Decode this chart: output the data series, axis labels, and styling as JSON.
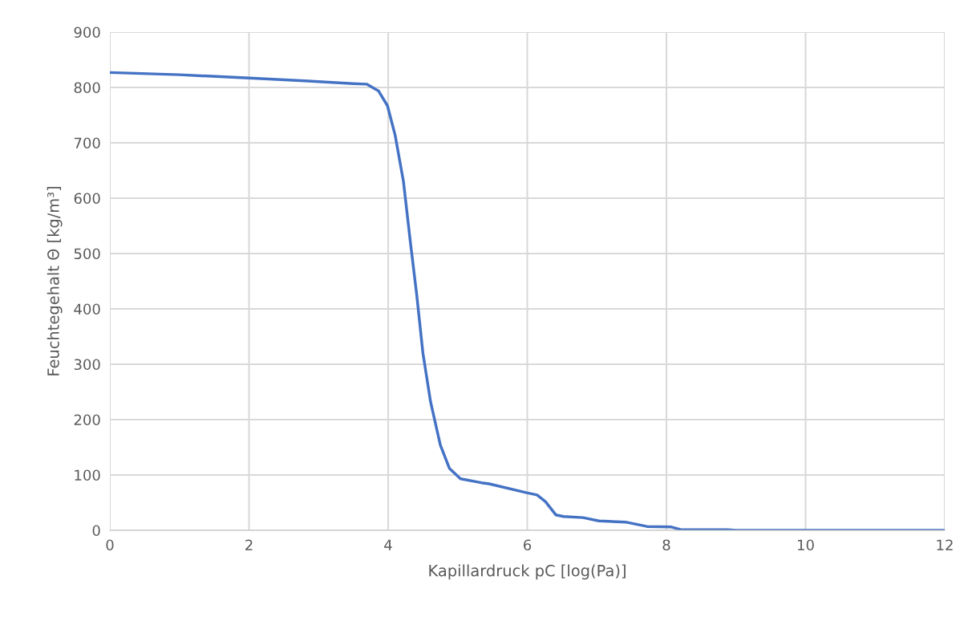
{
  "chart_data": {
    "type": "line",
    "xlabel": "Kapillardruck pC [log(Pa)]",
    "ylabel": "Feuchtegehalt Θ [kg/m³]",
    "x": [
      0,
      1,
      2,
      2.8,
      3.5,
      3.69,
      3.86,
      3.99,
      4.1,
      4.22,
      4.32,
      4.41,
      4.5,
      4.61,
      4.75,
      4.88,
      5.04,
      5.34,
      5.45,
      5.99,
      6.14,
      6.26,
      6.41,
      6.52,
      6.8,
      7.03,
      7.41,
      7.72,
      8.07,
      8.22,
      8.88,
      9.0,
      12
    ],
    "series": [
      {
        "color": "#4472c4",
        "values": [
          827,
          823,
          817,
          812,
          807,
          806,
          794,
          767,
          714,
          630,
          520,
          426,
          320,
          232,
          154,
          112,
          93,
          86,
          84,
          68,
          64,
          52,
          28,
          25,
          23,
          17,
          15,
          7,
          6,
          1,
          1,
          0,
          0
        ]
      }
    ],
    "xlim": [
      0,
      12
    ],
    "xticks": [
      0,
      2,
      4,
      6,
      8,
      10,
      12
    ],
    "ylim": [
      0,
      900
    ],
    "yticks": [
      0,
      100,
      200,
      300,
      400,
      500,
      600,
      700,
      800,
      900
    ],
    "grid": true,
    "legend": false,
    "marker": "none",
    "line_style": "solid"
  }
}
